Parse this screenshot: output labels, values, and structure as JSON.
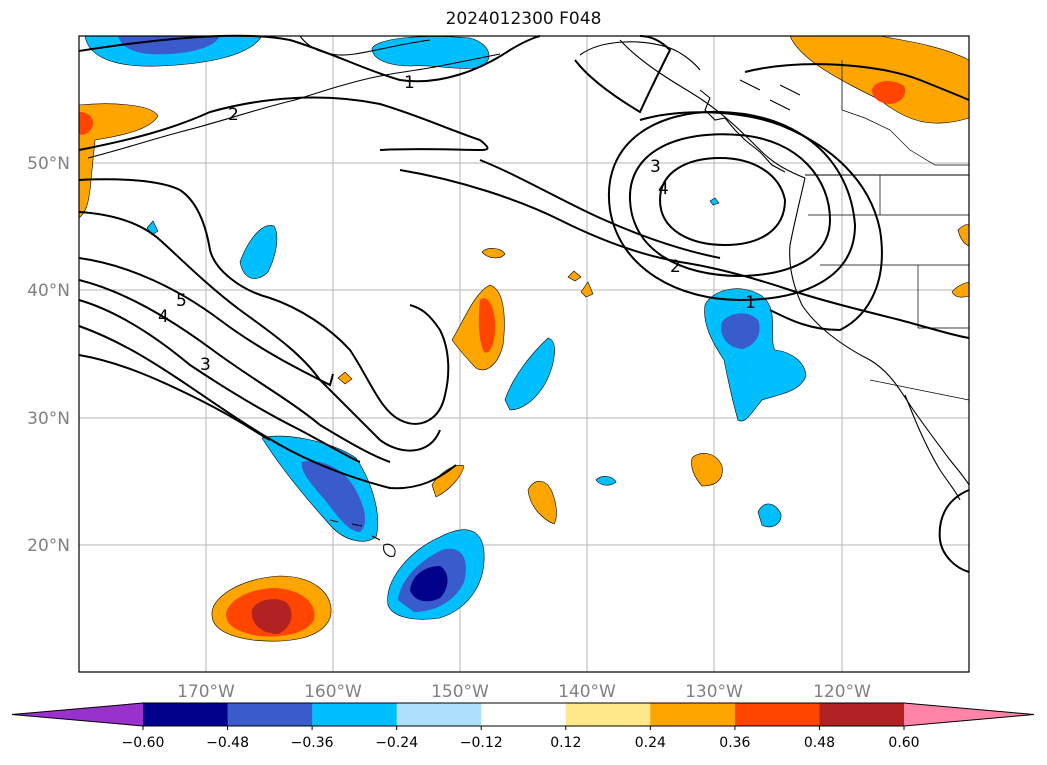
{
  "title": "2024012300 F048",
  "map": {
    "lon_range": [
      -180,
      -110
    ],
    "lat_range": [
      10,
      60
    ],
    "lon_ticks": [
      "170°W",
      "160°W",
      "150°W",
      "140°W",
      "130°W",
      "120°W"
    ],
    "lat_ticks": [
      "50°N",
      "40°N",
      "30°N",
      "20°N"
    ],
    "tick_color": "#808080",
    "grid": true,
    "contour_labels": [
      "1",
      "2",
      "2",
      "3",
      "3",
      "4",
      "4",
      "5",
      "1"
    ]
  },
  "colorbar": {
    "tick_labels": [
      "−0.60",
      "−0.48",
      "−0.36",
      "−0.24",
      "−0.12",
      "0.12",
      "0.24",
      "0.36",
      "0.48",
      "0.60"
    ],
    "colors": [
      "#9932cc",
      "#00008b",
      "#3a5bcc",
      "#00bfff",
      "#ade0fb",
      "#ffffff",
      "#ffe88a",
      "#ffa500",
      "#ff4500",
      "#b22222",
      "#ff85a8"
    ]
  }
}
